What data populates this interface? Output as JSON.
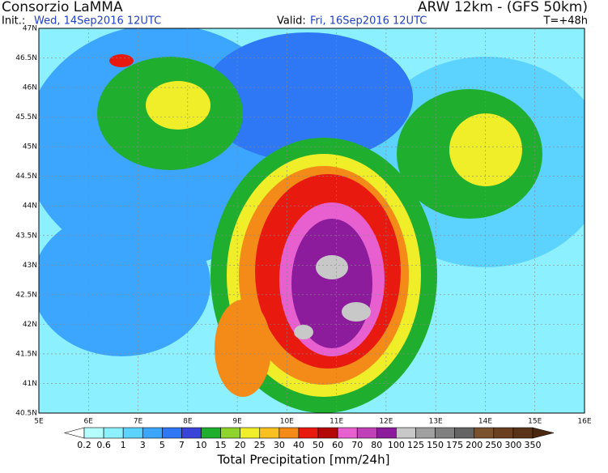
{
  "header": {
    "title": "Consorzio LaMMA",
    "model": "ARW 12km - (GFS 50km)",
    "init_label": "Init.:",
    "init": "Wed, 14Sep2016 12UTC",
    "valid_label": "Valid:",
    "valid": "Fri, 16Sep2016 12UTC",
    "lead": "T=+48h"
  },
  "map": {
    "lat_labels": [
      "47N",
      "46.5N",
      "46N",
      "45.5N",
      "45N",
      "44.5N",
      "44N",
      "43.5N",
      "43N",
      "42.5N",
      "42N",
      "41.5N",
      "41N",
      "40.5N"
    ],
    "lon_labels": [
      "5E",
      "6E",
      "7E",
      "8E",
      "9E",
      "10E",
      "11E",
      "12E",
      "13E",
      "14E",
      "15E",
      "16E"
    ]
  },
  "colorbar": {
    "title": "Total Precipitation [mm/24h]",
    "levels": [
      0.2,
      0.6,
      1,
      3,
      5,
      7,
      10,
      15,
      20,
      25,
      30,
      40,
      50,
      60,
      70,
      80,
      100,
      125,
      150,
      175,
      200,
      250,
      300,
      350
    ],
    "colors": [
      "#ffffff",
      "#b4fffd",
      "#8cf0ff",
      "#5cd2ff",
      "#3ca6ff",
      "#2f78f5",
      "#3a44d8",
      "#1fae2e",
      "#8fd42c",
      "#f0ee28",
      "#f8c020",
      "#f48a18",
      "#e81a10",
      "#b40808",
      "#e860d0",
      "#c040b8",
      "#8c1c9c",
      "#c8c8c8",
      "#a0a0a0",
      "#808080",
      "#646464",
      "#7a5230",
      "#6a4020",
      "#5a3418",
      "#4a2810"
    ]
  }
}
